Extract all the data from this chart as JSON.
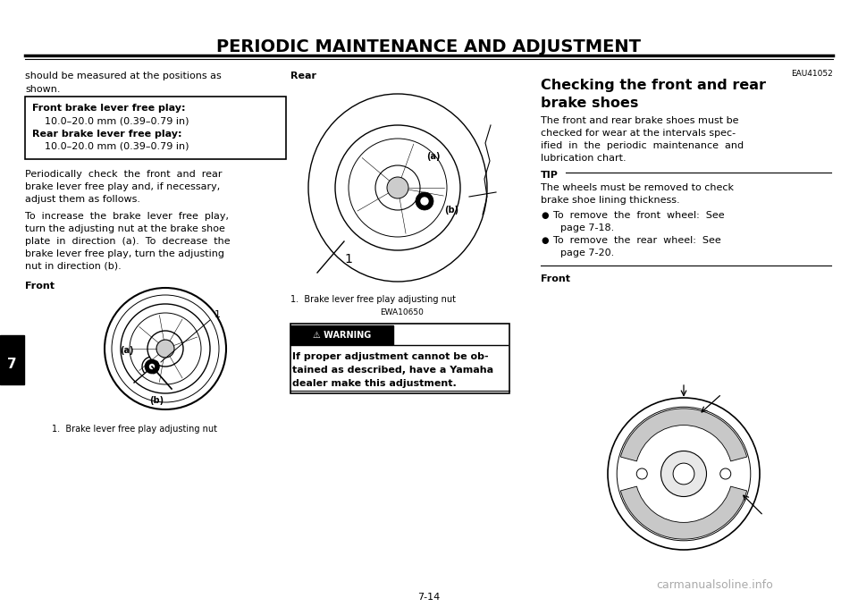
{
  "bg_color": "#ffffff",
  "title": "PERIODIC MAINTENANCE AND ADJUSTMENT",
  "page_number": "7-14",
  "tab_number": "7",
  "line1_text": "should be measured at the positions as",
  "line2_text": "shown.",
  "box_title1": "Front brake lever free play:",
  "box_line1": "10.0–20.0 mm (0.39–0.79 in)",
  "box_title2": "Rear brake lever free play:",
  "box_line2": "10.0–20.0 mm (0.39–0.79 in)",
  "para1_line1": "Periodically  check  the  front  and  rear",
  "para1_line2": "brake lever free play and, if necessary,",
  "para1_line3": "adjust them as follows.",
  "para2_line1": "To  increase  the  brake  lever  free  play,",
  "para2_line2": "turn the adjusting nut at the brake shoe",
  "para2_line3": "plate  in  direction  (a).  To  decrease  the",
  "para2_line4": "brake lever free play, turn the adjusting",
  "para2_line5": "nut in direction (b).",
  "front_label": "Front",
  "rear_label": "Rear",
  "caption1": "1.  Brake lever free play adjusting nut",
  "code1": "EWA10650",
  "warning_text1": "If proper adjustment cannot be ob-",
  "warning_text2": "tained as described, have a Yamaha",
  "warning_text3": "dealer make this adjustment.",
  "right_title_code": "EAU41052",
  "right_title1": "Checking the front and rear",
  "right_title2": "brake shoes",
  "right_para1": "The front and rear brake shoes must be",
  "right_para2": "checked for wear at the intervals spec-",
  "right_para3": "ified  in  the  periodic  maintenance  and",
  "right_para4": "lubrication chart.",
  "tip_label": "TIP",
  "tip_line1": "The wheels must be removed to check",
  "tip_line2": "brake shoe lining thickness.",
  "bullet1_line1": "To  remove  the  front  wheel:  See",
  "bullet1_line2": "page 7-18.",
  "bullet2_line1": "To  remove  the  rear  wheel:  See",
  "bullet2_line2": "page 7-20.",
  "right_front_label": "Front",
  "watermark": "carmanualsoline.info",
  "font_size_title": 14,
  "font_size_body": 8.0,
  "font_size_small": 7.0,
  "font_size_tab": 11
}
